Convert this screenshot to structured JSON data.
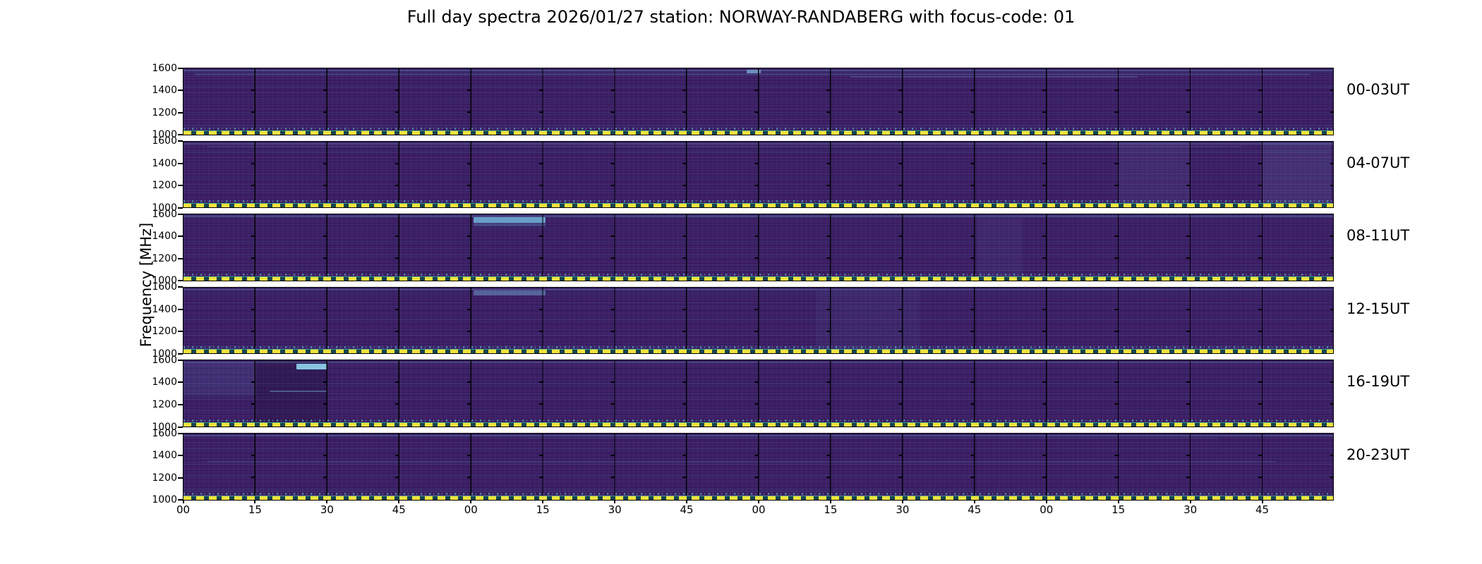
{
  "title": "Full day spectra 2026/01/27 station: NORWAY-RANDABERG with focus-code: 01",
  "axes": {
    "ylabel": "Frequency [MHz]",
    "y_ticks": [
      "1600",
      "1400",
      "1200",
      "1000"
    ],
    "x_ticks": [
      "00",
      "15",
      "30",
      "45",
      "00",
      "15",
      "30",
      "45",
      "00",
      "15",
      "30",
      "45",
      "00",
      "15",
      "30",
      "45"
    ]
  },
  "panels": [
    {
      "label": "00-03UT"
    },
    {
      "label": "04-07UT"
    },
    {
      "label": "08-11UT"
    },
    {
      "label": "12-15UT"
    },
    {
      "label": "16-19UT"
    },
    {
      "label": "20-23UT"
    }
  ],
  "chart_data": {
    "type": "heatmap",
    "title": "Full day spectra 2026/01/27 station: NORWAY-RANDABERG with focus-code: 01",
    "ylabel": "Frequency [MHz]",
    "ylim_mhz": [
      1000,
      1600
    ],
    "y_tick_values_mhz": [
      1600,
      1400,
      1200,
      1000
    ],
    "x_tick_labels_minutes": [
      "00",
      "15",
      "30",
      "45"
    ],
    "hours_per_row": 4,
    "minutes_per_segment": 15,
    "segments_per_row": 16,
    "colormap": "viridis",
    "background_hex": "#391d62",
    "streak_hexes": [
      "#4a5f9e",
      "#5fa8cf",
      "#7cc7e2"
    ],
    "dashed_line": {
      "color_hex": "#f2e33c",
      "gap_hex": "#17434f",
      "freq_mhz": 1010,
      "style": "dashed"
    },
    "rows": [
      {
        "label": "00-03UT",
        "utc_range": "00:00-04:00",
        "note": "faint cyan streaks near 1560 MHz"
      },
      {
        "label": "04-07UT",
        "utc_range": "04:00-08:00",
        "note": "hazy blue segments on right side"
      },
      {
        "label": "08-11UT",
        "utc_range": "08:00-12:00",
        "note": "bright cyan band ~1550 MHz near 09:00-09:15"
      },
      {
        "label": "12-15UT",
        "utc_range": "12:00-16:00",
        "note": "faint band ~1550 MHz, dense speckle"
      },
      {
        "label": "16-19UT",
        "utc_range": "16:00-20:00",
        "note": "bright cyan band ~1540 MHz near 16:25, dark striped segment 16:15-16:30"
      },
      {
        "label": "20-23UT",
        "utc_range": "20:00-24:00",
        "note": "mostly uniform with faint streaks"
      }
    ],
    "features": [
      {
        "row": 0,
        "x": 0.01,
        "w": 0.97,
        "y": 0.08,
        "h": 0.03,
        "color": "rgba(100,165,210,0.18)"
      },
      {
        "row": 0,
        "x": 0.49,
        "w": 0.012,
        "y": 0.02,
        "h": 0.06,
        "color": "rgba(140,210,235,0.60)"
      },
      {
        "row": 0,
        "x": 0.58,
        "w": 0.25,
        "y": 0.12,
        "h": 0.02,
        "color": "rgba(110,170,215,0.25)"
      },
      {
        "row": 1,
        "x": 0.813,
        "w": 0.062,
        "y": 0.02,
        "h": 0.95,
        "color": "rgba(125,150,205,0.10)"
      },
      {
        "row": 1,
        "x": 0.938,
        "w": 0.06,
        "y": 0.02,
        "h": 0.95,
        "color": "rgba(135,165,215,0.13)"
      },
      {
        "row": 1,
        "x": 0.02,
        "w": 0.9,
        "y": 0.07,
        "h": 0.025,
        "color": "rgba(100,165,210,0.15)"
      },
      {
        "row": 2,
        "x": 0.252,
        "w": 0.063,
        "y": 0.04,
        "h": 0.09,
        "color": "rgba(115,190,225,0.80)"
      },
      {
        "row": 2,
        "x": 0.252,
        "w": 0.063,
        "y": 0.13,
        "h": 0.05,
        "color": "rgba(95,155,205,0.30)"
      },
      {
        "row": 2,
        "x": 0.69,
        "w": 0.04,
        "y": 0.05,
        "h": 0.9,
        "color": "rgba(110,140,200,0.08)"
      },
      {
        "row": 3,
        "x": 0.252,
        "w": 0.063,
        "y": 0.05,
        "h": 0.07,
        "color": "rgba(120,180,220,0.45)"
      },
      {
        "row": 3,
        "x": 0.55,
        "w": 0.09,
        "y": 0.05,
        "h": 0.9,
        "color": "rgba(105,135,195,0.08)"
      },
      {
        "row": 4,
        "x": 0.063,
        "w": 0.062,
        "y": 0.0,
        "h": 1.0,
        "color": "rgba(12,8,34,0.22)"
      },
      {
        "row": 4,
        "x": 0.098,
        "w": 0.027,
        "y": 0.05,
        "h": 0.09,
        "color": "rgba(145,215,240,0.90)"
      },
      {
        "row": 4,
        "x": 0.0,
        "w": 0.063,
        "y": 0.03,
        "h": 0.5,
        "color": "rgba(110,160,210,0.12)"
      },
      {
        "row": 4,
        "x": 0.075,
        "w": 0.05,
        "y": 0.45,
        "h": 0.03,
        "color": "rgba(120,185,225,0.40)"
      },
      {
        "row": 5,
        "x": 0.02,
        "w": 0.93,
        "y": 0.42,
        "h": 0.02,
        "color": "rgba(105,160,210,0.16)"
      },
      {
        "row": 5,
        "x": 0.3,
        "w": 0.6,
        "y": 0.06,
        "h": 0.02,
        "color": "rgba(100,160,205,0.18)"
      }
    ]
  }
}
